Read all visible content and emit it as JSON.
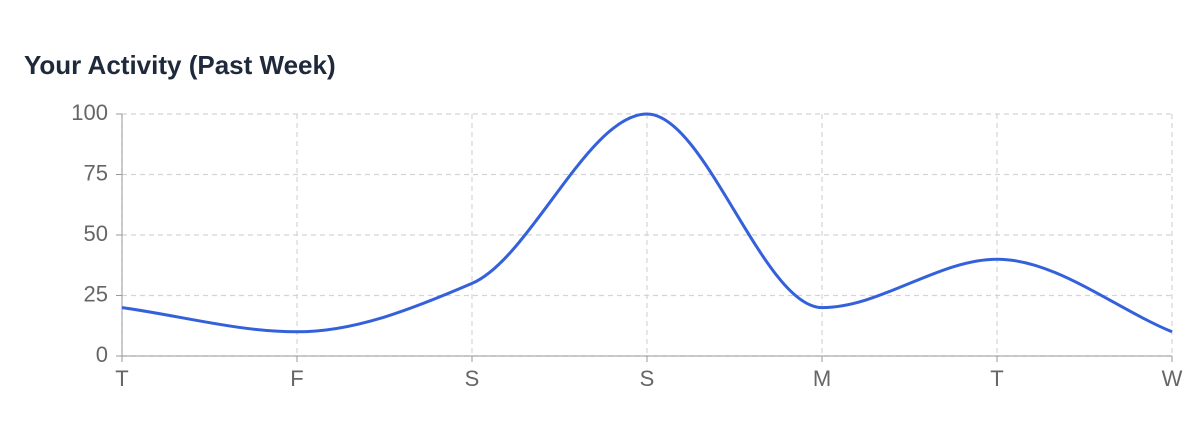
{
  "chart_data": {
    "type": "line",
    "title": "Your Activity (Past Week)",
    "categories": [
      "T",
      "F",
      "S",
      "S",
      "M",
      "T",
      "W"
    ],
    "series": [
      {
        "color": "#3461db",
        "values": [
          20,
          10,
          30,
          100,
          20,
          40,
          10
        ]
      }
    ],
    "ylim": [
      0,
      100
    ],
    "yticks": [
      0,
      25,
      50,
      75,
      100
    ],
    "grid": true
  }
}
